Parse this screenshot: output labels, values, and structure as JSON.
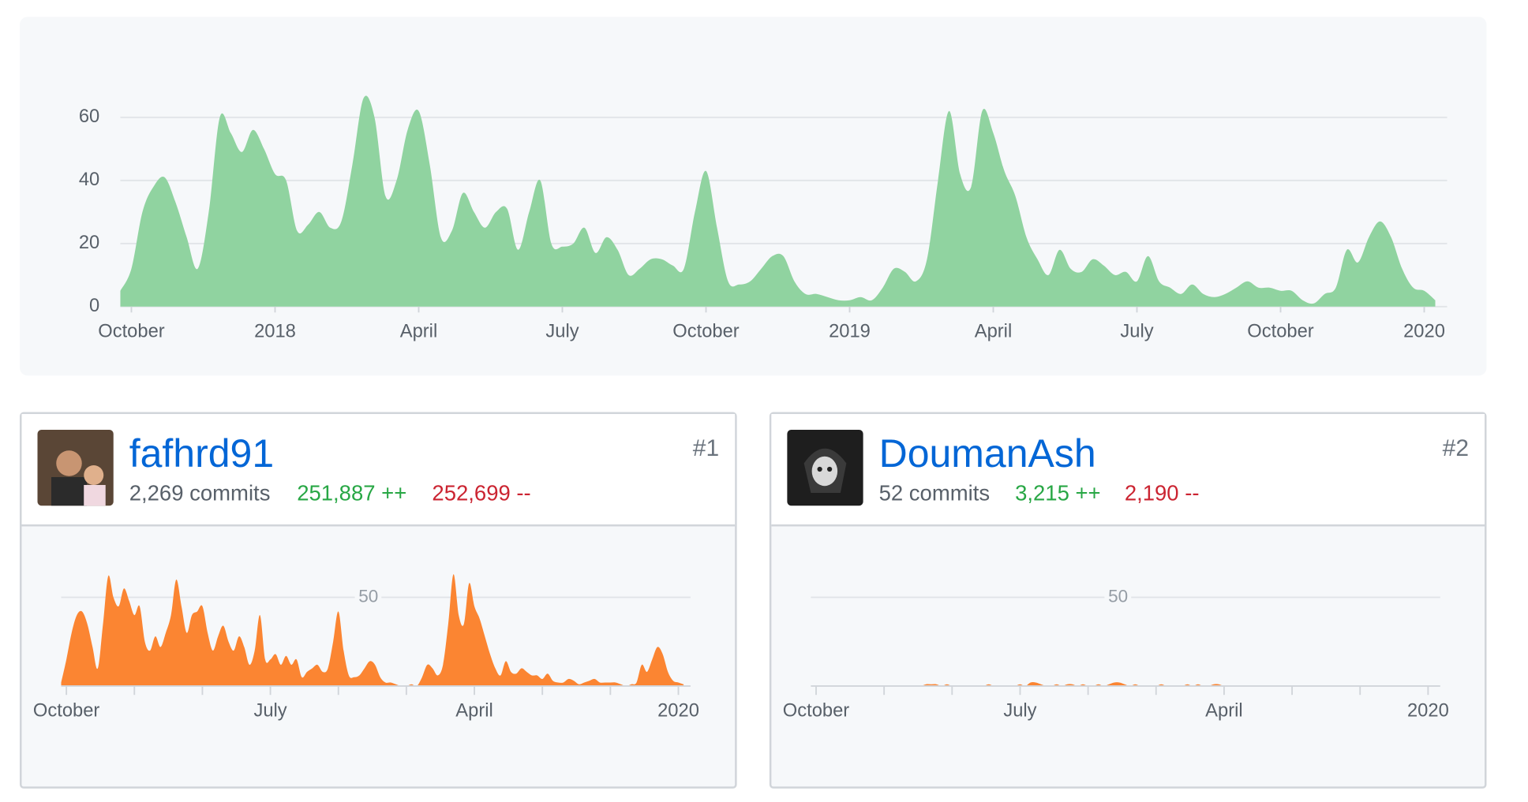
{
  "chart_data": [
    {
      "type": "area",
      "color": "#90d3a0",
      "x": [
        0,
        1,
        2,
        3,
        4,
        5,
        6,
        7,
        8,
        9,
        10,
        11,
        12,
        13,
        14,
        15,
        16,
        17,
        18,
        19,
        20,
        21,
        22,
        23,
        24,
        25,
        26,
        27,
        28,
        29,
        30,
        31,
        32,
        33,
        34,
        35,
        36,
        37,
        38,
        39,
        40,
        41,
        42,
        43,
        44,
        45,
        46,
        47,
        48,
        49,
        50,
        51,
        52,
        53,
        54,
        55,
        56,
        57,
        58,
        59,
        60,
        61,
        62,
        63,
        64,
        65,
        66,
        67,
        68,
        69,
        70,
        71,
        72,
        73,
        74,
        75,
        76,
        77,
        78,
        79,
        80,
        81,
        82,
        83,
        84,
        85,
        86,
        87,
        88,
        89,
        90,
        91,
        92,
        93,
        94,
        95,
        96,
        97,
        98,
        99,
        100,
        101,
        102,
        103,
        104,
        105,
        106,
        107,
        108,
        109,
        110,
        111,
        112,
        113,
        114,
        115,
        116,
        117,
        118,
        119
      ],
      "series": [
        {
          "color": "#90d3a0",
          "values": [
            5,
            12,
            30,
            38,
            41,
            33,
            22,
            12,
            30,
            60,
            55,
            49,
            56,
            50,
            42,
            40,
            24,
            26,
            30,
            25,
            27,
            45,
            66,
            60,
            35,
            40,
            56,
            62,
            45,
            22,
            24,
            36,
            30,
            25,
            30,
            31,
            18,
            30,
            40,
            20,
            19,
            20,
            25,
            17,
            22,
            18,
            10,
            12,
            15,
            15,
            13,
            12,
            30,
            43,
            25,
            8,
            7,
            8,
            12,
            16,
            16,
            8,
            4,
            4,
            3,
            2,
            2,
            3,
            2,
            6,
            12,
            11,
            8,
            15,
            40,
            62,
            42,
            38,
            62,
            55,
            43,
            35,
            22,
            15,
            10,
            18,
            12,
            11,
            15,
            13,
            10,
            11,
            8,
            16,
            8,
            6,
            4,
            7,
            4,
            3,
            4,
            6,
            8,
            6,
            6,
            5,
            5,
            2,
            1,
            4,
            6,
            18,
            14,
            22,
            27,
            22,
            12,
            6,
            5,
            2
          ]
        }
      ],
      "xlim": [
        0,
        119
      ],
      "ylim": [
        0,
        70
      ],
      "yticks": [
        0,
        20,
        40,
        60
      ],
      "grid": true,
      "xticks": [
        {
          "value": 1,
          "label": "October"
        },
        {
          "value": 14,
          "label": "2018"
        },
        {
          "value": 27,
          "label": "April"
        },
        {
          "value": 40,
          "label": "July"
        },
        {
          "value": 53,
          "label": "October"
        },
        {
          "value": 66,
          "label": "2019"
        },
        {
          "value": 79,
          "label": "April"
        },
        {
          "value": 92,
          "label": "July"
        },
        {
          "value": 105,
          "label": "October"
        },
        {
          "value": 118,
          "label": "2020"
        }
      ]
    },
    {
      "type": "area",
      "color": "#fb8532",
      "x": [
        0,
        1,
        2,
        3,
        4,
        5,
        6,
        7,
        8,
        9,
        10,
        11,
        12,
        13,
        14,
        15,
        16,
        17,
        18,
        19,
        20,
        21,
        22,
        23,
        24,
        25,
        26,
        27,
        28,
        29,
        30,
        31,
        32,
        33,
        34,
        35,
        36,
        37,
        38,
        39,
        40,
        41,
        42,
        43,
        44,
        45,
        46,
        47,
        48,
        49,
        50,
        51,
        52,
        53,
        54,
        55,
        56,
        57,
        58,
        59,
        60,
        61,
        62,
        63,
        64,
        65,
        66,
        67,
        68,
        69,
        70,
        71,
        72,
        73,
        74,
        75,
        76,
        77,
        78,
        79,
        80,
        81,
        82,
        83,
        84,
        85,
        86,
        87,
        88,
        89,
        90,
        91,
        92,
        93,
        94,
        95,
        96,
        97,
        98,
        99,
        100,
        101,
        102,
        103,
        104,
        105,
        106,
        107,
        108,
        109,
        110,
        111,
        112,
        113,
        114,
        115,
        116,
        117,
        118,
        119
      ],
      "series": [
        {
          "color": "#fb8532",
          "values": [
            2,
            15,
            30,
            40,
            42,
            35,
            22,
            10,
            35,
            62,
            50,
            45,
            55,
            48,
            40,
            45,
            25,
            20,
            28,
            22,
            30,
            40,
            60,
            45,
            30,
            40,
            42,
            45,
            30,
            20,
            28,
            34,
            25,
            20,
            28,
            22,
            12,
            20,
            40,
            15,
            15,
            18,
            12,
            17,
            12,
            15,
            5,
            8,
            10,
            12,
            8,
            10,
            25,
            42,
            20,
            6,
            5,
            6,
            10,
            14,
            12,
            5,
            2,
            2,
            1,
            0,
            0,
            1,
            0,
            5,
            12,
            10,
            6,
            12,
            35,
            63,
            40,
            35,
            58,
            45,
            38,
            28,
            18,
            10,
            6,
            14,
            8,
            7,
            10,
            8,
            6,
            6,
            4,
            7,
            3,
            2,
            2,
            4,
            3,
            1,
            2,
            3,
            4,
            2,
            2,
            2,
            2,
            1,
            0,
            1,
            2,
            12,
            8,
            15,
            22,
            18,
            8,
            3,
            2,
            1
          ]
        }
      ],
      "xlim": [
        0,
        119
      ],
      "ylim": [
        0,
        65
      ],
      "yticks": [
        50
      ],
      "grid": true,
      "xticks": [
        {
          "value": 1,
          "label": "October"
        },
        {
          "value": 40,
          "label": "July"
        },
        {
          "value": 79,
          "label": "April"
        },
        {
          "value": 118,
          "label": "2020"
        }
      ],
      "minor_xticks": [
        14,
        27,
        53,
        66,
        92,
        105
      ]
    },
    {
      "type": "area",
      "color": "#fb8532",
      "x": [
        0,
        1,
        2,
        3,
        4,
        5,
        6,
        7,
        8,
        9,
        10,
        11,
        12,
        13,
        14,
        15,
        16,
        17,
        18,
        19,
        20,
        21,
        22,
        23,
        24,
        25,
        26,
        27,
        28,
        29,
        30,
        31,
        32,
        33,
        34,
        35,
        36,
        37,
        38,
        39,
        40,
        41,
        42,
        43,
        44,
        45,
        46,
        47,
        48,
        49,
        50,
        51,
        52,
        53,
        54,
        55,
        56,
        57,
        58,
        59,
        60,
        61,
        62,
        63,
        64,
        65,
        66,
        67,
        68,
        69,
        70,
        71,
        72,
        73,
        74,
        75,
        76,
        77,
        78,
        79,
        80,
        81,
        82,
        83,
        84,
        85,
        86,
        87,
        88,
        89,
        90,
        91,
        92,
        93,
        94,
        95,
        96,
        97,
        98,
        99,
        100,
        101,
        102,
        103,
        104,
        105,
        106,
        107,
        108,
        109,
        110,
        111,
        112,
        113,
        114,
        115,
        116,
        117,
        118,
        119
      ],
      "series": [
        {
          "color": "#fb8532",
          "values": [
            0,
            0,
            0,
            0,
            0,
            0,
            0,
            0,
            0,
            0,
            0,
            0,
            0,
            0,
            0,
            0,
            0,
            0,
            0,
            0,
            0,
            0,
            1,
            1,
            1,
            0,
            1,
            0,
            0,
            0,
            0,
            0,
            0,
            0,
            1,
            0,
            0,
            0,
            0,
            0,
            1,
            0,
            2,
            2,
            1,
            0,
            0,
            1,
            0,
            1,
            1,
            0,
            1,
            0,
            0,
            1,
            0,
            1,
            2,
            2,
            1,
            0,
            1,
            0,
            0,
            0,
            0,
            1,
            0,
            0,
            0,
            0,
            1,
            0,
            1,
            0,
            0,
            1,
            1,
            0,
            0,
            0,
            0,
            0,
            0,
            0,
            0,
            0,
            0,
            0,
            0,
            0,
            0,
            0,
            0,
            0,
            0,
            0,
            0,
            0,
            0,
            0,
            0,
            0,
            0,
            0,
            0,
            0,
            0,
            0,
            0,
            0,
            0,
            0,
            0,
            0,
            0,
            0,
            0,
            0
          ]
        }
      ],
      "xlim": [
        0,
        119
      ],
      "ylim": [
        0,
        65
      ],
      "yticks": [
        50
      ],
      "grid": true,
      "xticks": [
        {
          "value": 1,
          "label": "October"
        },
        {
          "value": 40,
          "label": "July"
        },
        {
          "value": 79,
          "label": "April"
        },
        {
          "value": 118,
          "label": "2020"
        }
      ],
      "minor_xticks": [
        14,
        27,
        53,
        66,
        92,
        105
      ]
    }
  ],
  "contributors": [
    {
      "name": "fafhrd91",
      "rank": "#1",
      "commits": "2,269 commits",
      "additions": "251,887 ++",
      "deletions": "252,699 --"
    },
    {
      "name": "DoumanAsh",
      "rank": "#2",
      "commits": "52 commits",
      "additions": "3,215 ++",
      "deletions": "2,190 --"
    }
  ]
}
